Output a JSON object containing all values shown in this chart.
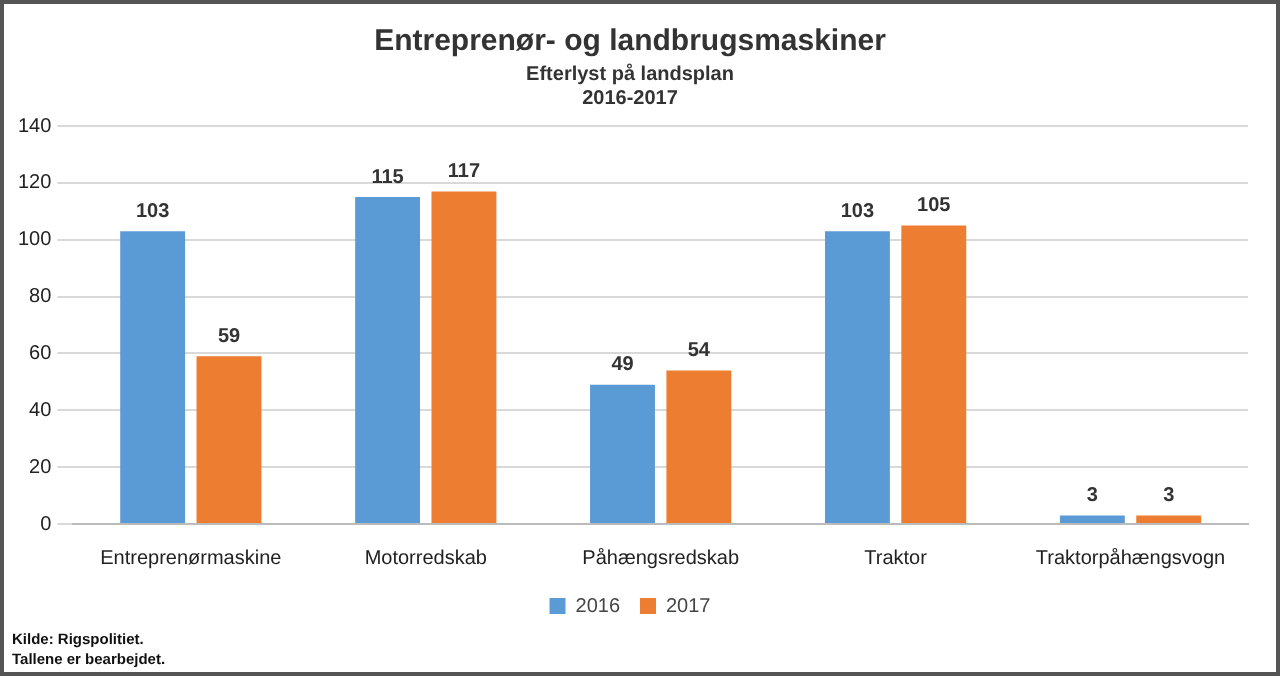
{
  "chart_data": {
    "type": "bar",
    "title": "Entreprenør- og landbrugsmaskiner",
    "subtitle": "Efterlyst på landsplan\n2016-2017",
    "categories": [
      "Entreprenørmaskine",
      "Motorredskab",
      "Påhængsredskab",
      "Traktor",
      "Traktorpåhængsvogn"
    ],
    "series": [
      {
        "name": "2016",
        "color": "#5b9bd5",
        "values": [
          103,
          115,
          49,
          103,
          3
        ]
      },
      {
        "name": "2017",
        "color": "#ed7d31",
        "values": [
          59,
          117,
          54,
          105,
          3
        ]
      }
    ],
    "ylim": [
      0,
      140
    ],
    "yticks": [
      0,
      20,
      40,
      60,
      80,
      100,
      120,
      140
    ],
    "grid": "y",
    "legend": "bottom",
    "data_labels": true,
    "annotations": [
      "Kilde: Rigspolitiet.",
      "Tallene er bearbejdet."
    ]
  }
}
